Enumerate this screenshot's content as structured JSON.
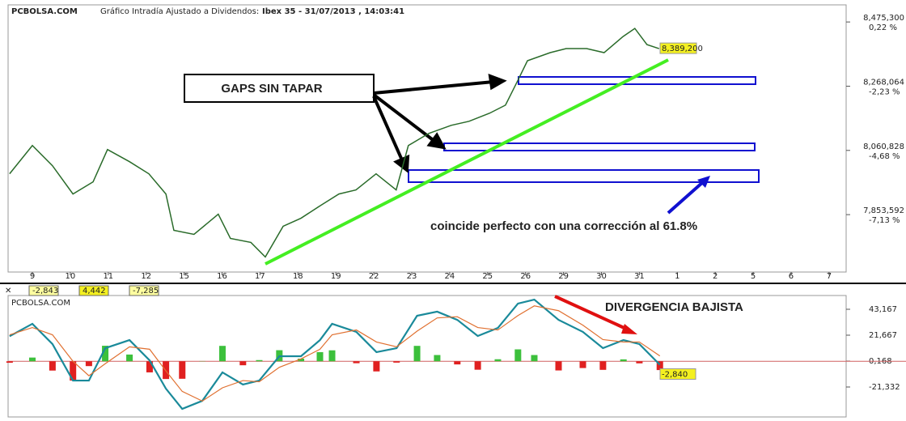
{
  "header": {
    "site": "PCBOLSA.COM",
    "caption": "Gráfico Intradía Ajustado a Dividendos:",
    "instrument": "Ibex 35 - 31/07/2013 , 14:03:41"
  },
  "annotations": {
    "gaps": "GAPS SIN TAPAR",
    "fib": "coincide perfecto con una corrección al 61.8%",
    "divergence": "DIVERGENCIA BAJISTA"
  },
  "chart_data": [
    {
      "type": "line",
      "categories": [
        "9",
        "10",
        "11",
        "12",
        "15",
        "16",
        "17",
        "18",
        "19",
        "22",
        "23",
        "24",
        "25",
        "26",
        "29",
        "30",
        "31",
        "1",
        "2",
        "5",
        "6",
        "7"
      ],
      "x": [
        -0.6,
        0,
        0.53,
        1.07,
        1.6,
        1.98,
        2.56,
        3.07,
        3.52,
        3.73,
        4.26,
        4.9,
        5.22,
        5.76,
        6.14,
        6.61,
        7.08,
        7.57,
        8.08,
        8.53,
        9.06,
        9.59,
        9.91,
        10.45,
        11.04,
        11.51,
        12.05,
        12.47,
        12.79,
        13.05,
        13.65,
        14.07,
        14.61,
        15.07,
        15.57,
        15.88,
        16.2,
        16.52
      ],
      "values": [
        7985.4,
        8076.6,
        8011.4,
        7920.2,
        7959.3,
        8063.6,
        8024.5,
        7985.4,
        7920.2,
        7803,
        7789.9,
        7855.1,
        7776.9,
        7763.9,
        7717,
        7816,
        7842,
        7881.1,
        7920.2,
        7933.3,
        7985.4,
        7933.3,
        8076.6,
        8115.7,
        8141.7,
        8154.8,
        8180.8,
        8206.9,
        8285.1,
        8350.2,
        8376.3,
        8389.3,
        8389.3,
        8376.3,
        8428.4,
        8454.5,
        8402.3,
        8389.2
      ],
      "color": "#2a6b2a",
      "xlim": [
        -0.64,
        21.45
      ],
      "ylim": [
        7671,
        8507
      ],
      "yticks": [
        {
          "value": 8475.3,
          "label": "8,475,300"
        },
        {
          "value": 8268.064,
          "label": "8,268,064"
        },
        {
          "value": 8060.828,
          "label": "8,060,828"
        },
        {
          "value": 7853.592,
          "label": "7,853,592"
        }
      ],
      "ytick_changes": [
        "0,22 %",
        "-2,23 %",
        "-4,68 %",
        "-7,13 %"
      ],
      "last_price": {
        "value": 8389.2,
        "label": "8,389,200"
      }
    },
    {
      "type": "macd",
      "watermark": "PCBOLSA.COM",
      "x": [
        -0.6,
        0,
        0.53,
        1.07,
        1.49,
        1.92,
        2.56,
        3.09,
        3.52,
        3.95,
        4.48,
        5.01,
        5.55,
        5.98,
        6.51,
        7.08,
        7.58,
        7.9,
        8.54,
        9.07,
        9.6,
        10.14,
        10.67,
        11.2,
        11.74,
        12.27,
        12.8,
        13.23,
        13.87,
        14.51,
        15.04,
        15.58,
        16.0,
        16.54
      ],
      "series": [
        {
          "color": "#1a8a9a",
          "values": [
            20.8,
            31.1,
            14.3,
            -16.0,
            -16.0,
            10.9,
            17.6,
            0.8,
            -22.7,
            -39.5,
            -32.8,
            -9.2,
            -19.3,
            -16.0,
            4.2,
            4.2,
            17.6,
            31.1,
            24.4,
            7.6,
            10.9,
            37.8,
            41.2,
            34.4,
            21.0,
            27.7,
            47.9,
            51.2,
            34.4,
            24.4,
            10.9,
            17.6,
            14.3,
            -2.843
          ]
        },
        {
          "color": "#e07030",
          "values": [
            22,
            28,
            22,
            0,
            -12,
            -2,
            12,
            10,
            -8,
            -25,
            -33,
            -22,
            -16,
            -17,
            -5,
            2,
            10,
            22,
            26,
            16,
            12,
            25,
            36,
            37,
            28,
            26,
            38,
            46,
            42,
            30,
            18,
            16,
            16,
            4.442
          ]
        }
      ],
      "histogram": {
        "values": [
          -1.2,
          3.1,
          -7.7,
          -16,
          -4,
          12.9,
          5.6,
          -9.2,
          -14.7,
          -14.5,
          0.2,
          12.8,
          -3.3,
          1,
          9.2,
          2.2,
          7.6,
          9.1,
          -1.6,
          -8.4,
          -1.1,
          12.8,
          5.2,
          -2.6,
          -7,
          1.7,
          9.9,
          5.2,
          -7.6,
          -5.6,
          -7.1,
          1.6,
          -1.7,
          -7.285
        ],
        "positive_color": "#3cc03c",
        "negative_color": "#e02020"
      },
      "readouts": [
        {
          "value": -2.843,
          "label": "-2,843"
        },
        {
          "value": 4.442,
          "label": "4,442"
        },
        {
          "value": -7.285,
          "label": "-7,285"
        }
      ],
      "last_label": {
        "value": -2.84,
        "label": "-2,840"
      },
      "ylim": [
        -46.2,
        54.6
      ],
      "yticks": [
        {
          "value": 43.167,
          "label": "43,167"
        },
        {
          "value": 21.667,
          "label": "21,667"
        },
        {
          "value": 0.168,
          "label": "0,168"
        },
        {
          "value": -21.332,
          "label": "-21,332"
        }
      ]
    }
  ]
}
